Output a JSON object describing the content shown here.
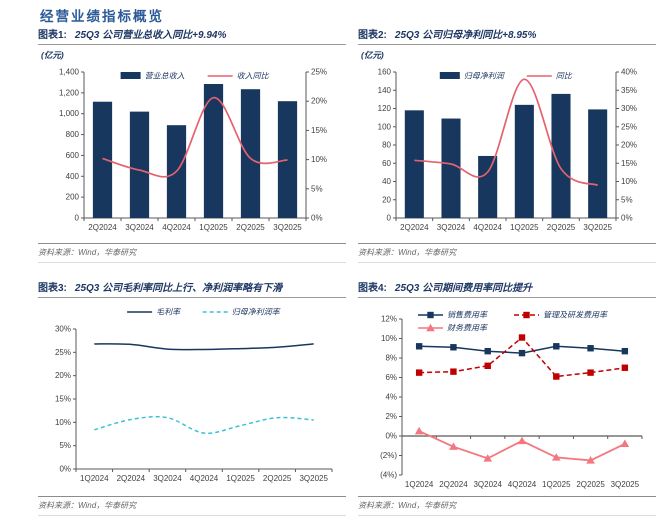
{
  "page_title": "经营业绩指标概览",
  "colors": {
    "page_title": "#2B5A96",
    "header": "#1F3864",
    "navy": "#17375E",
    "rose": "#E4626F",
    "cyan": "#3FC1D4",
    "dark_red": "#C00000",
    "salmon": "#F4777F",
    "axis": "#595959",
    "tick_text": "#404040",
    "source_text": "#666666"
  },
  "chart_data": [
    {
      "type": "combo",
      "label": "图表1:",
      "title": "25Q3 公司营业总收入同比+9.94%",
      "unit": "(亿元)",
      "source": "资料来源：Wind，华泰研究",
      "categories": [
        "2Q2024",
        "3Q2024",
        "4Q2024",
        "1Q2025",
        "2Q2025",
        "3Q2025"
      ],
      "bar_series": {
        "name": "营业总收入",
        "color": "navy",
        "values": [
          1115,
          1020,
          890,
          1285,
          1235,
          1120
        ]
      },
      "line_series": {
        "name": "收入同比",
        "color": "rose",
        "values": [
          10.2,
          8.2,
          8.0,
          20.6,
          10.2,
          9.94
        ]
      },
      "left_axis": {
        "min": 0,
        "max": 1400,
        "step": 200,
        "format": "thousands"
      },
      "right_axis": {
        "min": 0,
        "max": 25,
        "step": 5,
        "format": "percent"
      },
      "legend_position": "top-center"
    },
    {
      "type": "combo",
      "label": "图表2:",
      "title": "25Q3 公司归母净利同比+8.95%",
      "unit": "(亿元)",
      "source": "资料来源：Wind，华泰研究",
      "categories": [
        "2Q2024",
        "3Q2024",
        "4Q2024",
        "1Q2025",
        "2Q2025",
        "3Q2025"
      ],
      "bar_series": {
        "name": "归母净利润",
        "color": "navy",
        "values": [
          118,
          109,
          68,
          124,
          136,
          119
        ]
      },
      "line_series": {
        "name": "同比",
        "color": "rose",
        "values": [
          15.8,
          14.8,
          12.6,
          38.0,
          13.5,
          8.95
        ]
      },
      "left_axis": {
        "min": 0,
        "max": 160,
        "step": 20,
        "format": "plain"
      },
      "right_axis": {
        "min": 0,
        "max": 40,
        "step": 5,
        "format": "percent"
      },
      "legend_position": "top-center"
    },
    {
      "type": "lines",
      "label": "图表3:",
      "title": "25Q3 公司毛利率同比上行、净利润率略有下滑",
      "source": "资料来源：Wind，华泰研究",
      "categories": [
        "1Q2024",
        "2Q2024",
        "3Q2024",
        "4Q2024",
        "1Q2025",
        "2Q2025",
        "3Q2025"
      ],
      "series": [
        {
          "name": "毛利率",
          "color": "navy",
          "dash": "none",
          "smooth": true,
          "marker": "none",
          "values": [
            26.8,
            26.7,
            25.7,
            25.6,
            25.8,
            26.1,
            26.8
          ]
        },
        {
          "name": "归母净利润率",
          "color": "cyan",
          "dash": "4,3",
          "smooth": true,
          "marker": "none",
          "values": [
            8.4,
            10.6,
            11.0,
            7.7,
            9.3,
            11.0,
            10.5
          ]
        }
      ],
      "y_axis": {
        "min": 0,
        "max": 30,
        "step": 5,
        "format": "percent"
      },
      "legend_position": "top-center"
    },
    {
      "type": "lines",
      "label": "图表4:",
      "title": "25Q3 公司期间费用率同比提升",
      "source": "资料来源：Wind，华泰研究",
      "categories": [
        "1Q2024",
        "2Q2024",
        "3Q2024",
        "4Q2024",
        "1Q2025",
        "2Q2025",
        "3Q2025"
      ],
      "series": [
        {
          "name": "销售费用率",
          "color": "navy",
          "dash": "none",
          "smooth": false,
          "marker": "square",
          "values": [
            9.2,
            9.1,
            8.7,
            8.5,
            9.2,
            9.0,
            8.7
          ]
        },
        {
          "name": "管理及研发费用率",
          "color": "dark_red",
          "dash": "5,3",
          "smooth": false,
          "marker": "square",
          "values": [
            6.5,
            6.6,
            7.2,
            10.1,
            6.1,
            6.5,
            7.0
          ]
        },
        {
          "name": "财务费用率",
          "color": "salmon",
          "dash": "none",
          "smooth": false,
          "marker": "triangle",
          "values": [
            0.5,
            -1.1,
            -2.3,
            -0.5,
            -2.2,
            -2.5,
            -0.8
          ]
        }
      ],
      "y_axis": {
        "min": -4,
        "max": 12,
        "step": 2,
        "format": "percent-paren"
      },
      "legend_position": "top-left"
    }
  ]
}
